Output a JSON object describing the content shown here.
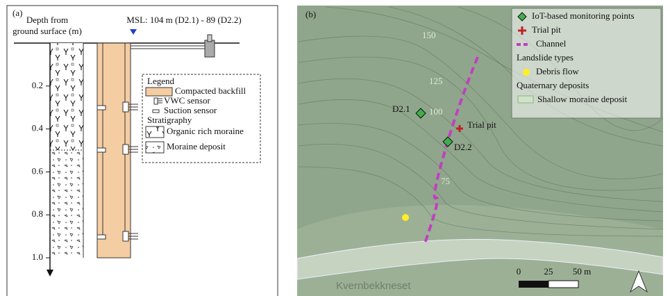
{
  "panel_a": {
    "label": "(a)",
    "depth_label_line1": "Depth from",
    "depth_label_line2": "ground surface (m)",
    "msl_label": "MSL: 104 m (D2.1) - 89 (D2.2)",
    "depth_ticks": [
      "0.2",
      "0.4",
      "0.6",
      "0.8",
      "1.0"
    ],
    "legend": {
      "title": "Legend",
      "items": [
        "Compacted backfill",
        "VWC sensor",
        "Suction sensor"
      ],
      "stratigraphy_title": "Stratigraphy",
      "stratigraphy_items": [
        "Organic rich moraine",
        "Moraine deposit"
      ]
    }
  },
  "panel_b": {
    "label": "(b)",
    "contour_labels": [
      "150",
      "125",
      "100",
      "75"
    ],
    "points": [
      "D2.1",
      "D2.2"
    ],
    "trial_pit": "Trial pit",
    "place": "Kvernbekkneset",
    "scale": [
      "0",
      "25",
      "50 m"
    ],
    "legend": {
      "items": [
        "IoT-based monitoring points",
        "Trial pit",
        "Channel"
      ],
      "landslide_title": "Landslide types",
      "landslide_items": [
        "Debris flow"
      ],
      "quaternary_title": "Quaternary deposits",
      "quaternary_items": [
        "Shallow moraine deposit"
      ]
    }
  }
}
